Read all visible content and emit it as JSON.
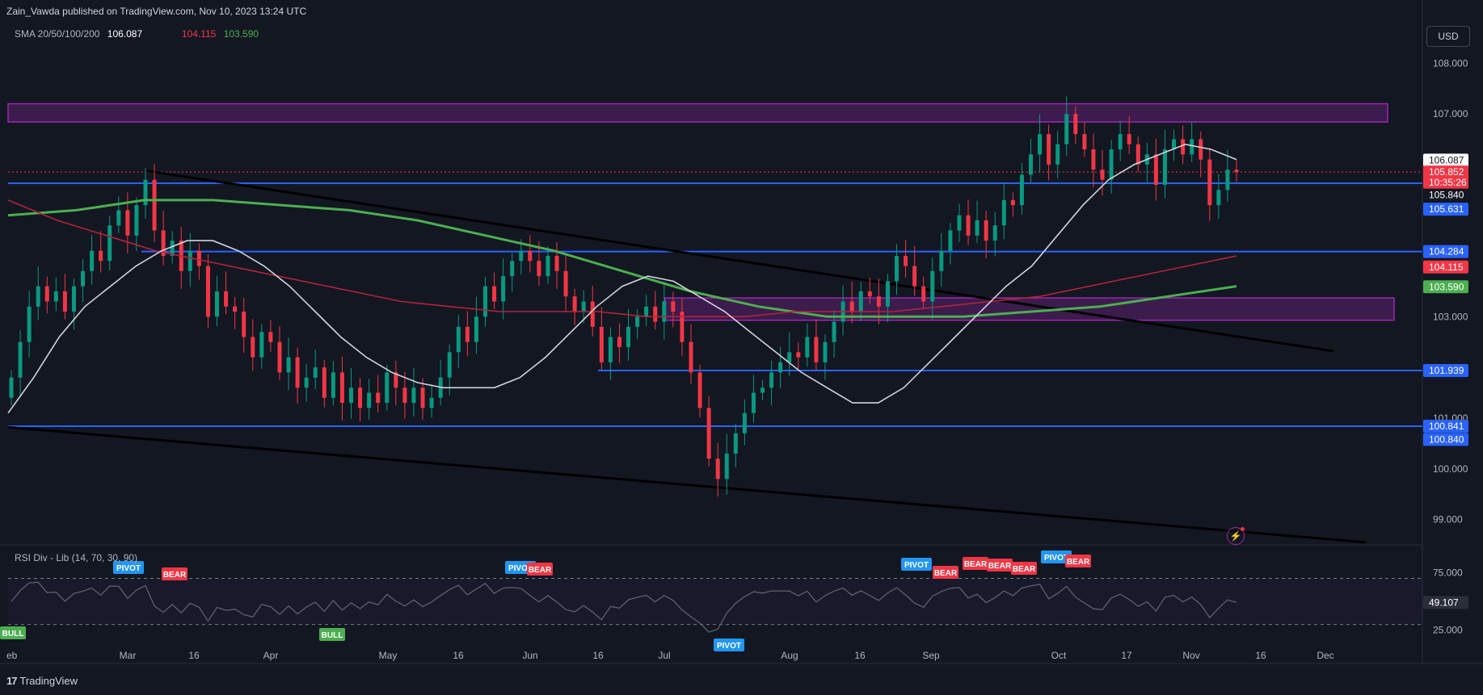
{
  "header": {
    "publish_line": "Zain_Vawda published on TradingView.com, Nov 10, 2023 13:24 UTC",
    "currency_button": "USD"
  },
  "sma_legend": {
    "label": "SMA 20/50/100/200",
    "v20": "106.087",
    "v100": "104.115",
    "v200": "103.590",
    "color_v20": "#ffffff",
    "color_v100": "#f23645",
    "color_v200": "#4caf50"
  },
  "rsi_legend": {
    "label": "RSI Div - Lib (14, 70, 30, 90)",
    "value": "49.107"
  },
  "footer": {
    "brand": "TradingView"
  },
  "chart_data": {
    "type": "candlestick",
    "instrument_note": "DXY daily",
    "price_axis": {
      "range": [
        98.5,
        108.8
      ],
      "ticks": [
        "108.000",
        "107.000",
        "103.000",
        "101.000",
        "100.000",
        "99.000"
      ]
    },
    "time_axis": {
      "labels": [
        "eb",
        "Mar",
        "16",
        "Apr",
        "May",
        "16",
        "Jun",
        "16",
        "Jul",
        "Aug",
        "16",
        "Sep",
        "Oct",
        "17",
        "Nov",
        "16",
        "Dec"
      ]
    },
    "price_labels": [
      {
        "text": "106.087",
        "color": "#ffffff",
        "price": 106.087
      },
      {
        "text": "105.852",
        "color": "#f23645",
        "price": 105.852
      },
      {
        "text": "10:35:26",
        "color": "#f23645",
        "price": 105.65
      },
      {
        "text": "105.840",
        "color": "#131722",
        "price": 105.4
      },
      {
        "text": "105.631",
        "color": "#2962ff",
        "price": 105.12
      },
      {
        "text": "104.284",
        "color": "#2962ff",
        "price": 104.284
      },
      {
        "text": "104.115",
        "color": "#f23645",
        "price": 103.98
      },
      {
        "text": "103.590",
        "color": "#4caf50",
        "price": 103.59
      },
      {
        "text": "101.939",
        "color": "#2962ff",
        "price": 101.939
      },
      {
        "text": "100.841",
        "color": "#2962ff",
        "price": 100.841
      },
      {
        "text": "100.840",
        "color": "#2962ff",
        "price": 100.58
      }
    ],
    "horizontal_levels": [
      105.631,
      104.284,
      101.939,
      100.841
    ],
    "zones": [
      {
        "from": 106.84,
        "to": 107.2,
        "color": "#9c27b0"
      },
      {
        "from": 102.93,
        "to": 103.37,
        "color": "#9c27b0"
      }
    ],
    "closes": [
      101.8,
      102.5,
      103.2,
      103.6,
      103.3,
      103.5,
      103.1,
      103.6,
      103.9,
      104.3,
      104.1,
      104.8,
      105.1,
      104.6,
      105.2,
      105.7,
      104.7,
      104.2,
      104.5,
      103.9,
      104.3,
      104.0,
      103.0,
      103.5,
      103.2,
      103.1,
      102.6,
      102.2,
      102.7,
      102.5,
      101.9,
      102.2,
      101.6,
      101.8,
      102.0,
      101.4,
      101.9,
      101.3,
      101.6,
      101.2,
      101.5,
      101.3,
      101.9,
      101.6,
      101.3,
      101.6,
      101.2,
      101.4,
      101.8,
      102.3,
      102.8,
      102.5,
      103.0,
      103.6,
      103.3,
      103.8,
      104.1,
      104.3,
      104.1,
      103.8,
      104.2,
      103.9,
      103.4,
      103.1,
      103.3,
      102.8,
      102.1,
      102.6,
      102.4,
      102.8,
      103.0,
      103.2,
      102.9,
      103.3,
      103.1,
      102.5,
      101.9,
      101.2,
      100.2,
      99.8,
      100.3,
      100.7,
      101.1,
      101.5,
      101.6,
      101.9,
      102.1,
      102.3,
      102.2,
      102.6,
      102.1,
      102.5,
      102.9,
      103.3,
      103.1,
      103.5,
      103.4,
      103.2,
      103.7,
      104.2,
      104.0,
      103.6,
      103.3,
      103.9,
      104.3,
      104.7,
      105.0,
      104.6,
      104.9,
      104.5,
      104.8,
      105.3,
      105.2,
      105.8,
      106.2,
      106.6,
      106.0,
      106.4,
      107.0,
      106.6,
      106.3,
      105.9,
      105.7,
      106.3,
      106.6,
      106.4,
      106.0,
      106.2,
      105.6,
      106.3,
      106.5,
      106.2,
      106.5,
      106.1,
      105.2,
      105.5,
      105.9,
      105.852
    ],
    "sma20": [
      101.1,
      101.8,
      102.6,
      103.2,
      103.6,
      104.0,
      104.3,
      104.5,
      104.5,
      104.3,
      104.0,
      103.6,
      103.1,
      102.6,
      102.2,
      101.9,
      101.7,
      101.6,
      101.6,
      101.6,
      101.8,
      102.2,
      102.7,
      103.2,
      103.6,
      103.8,
      103.7,
      103.4,
      103.1,
      102.7,
      102.3,
      101.9,
      101.6,
      101.3,
      101.3,
      101.6,
      102.1,
      102.6,
      103.1,
      103.6,
      104.0,
      104.6,
      105.2,
      105.7,
      106.0,
      106.2,
      106.4,
      106.3,
      106.1
    ],
    "sma100": [
      105.3,
      104.9,
      104.6,
      104.3,
      104.1,
      103.9,
      103.7,
      103.5,
      103.3,
      103.2,
      103.1,
      103.1,
      103.1,
      103.0,
      103.0,
      103.0,
      103.1,
      103.1,
      103.1,
      103.2,
      103.3,
      103.4,
      103.6,
      103.8,
      104.0,
      104.2
    ],
    "sma200": [
      105.0,
      105.1,
      105.3,
      105.3,
      105.2,
      105.1,
      104.9,
      104.6,
      104.3,
      103.9,
      103.5,
      103.2,
      103.0,
      103.0,
      103.0,
      103.1,
      103.2,
      103.4,
      103.6
    ],
    "trendlines": [
      {
        "from": [
          "Mar",
          105.9
        ],
        "to": [
          "Nov 26",
          102.3
        ]
      },
      {
        "from": [
          "Feb",
          100.8
        ],
        "to": [
          "Dec",
          98.5
        ]
      }
    ],
    "rsi": {
      "range": [
        15,
        90
      ],
      "ticks": [
        "75.000",
        "25.000"
      ],
      "levels": [
        70,
        30
      ],
      "value": 49.107,
      "signals": [
        {
          "label": "BULL",
          "color": "#4caf50"
        },
        {
          "label": "PIVOT",
          "color": "#2196f3"
        },
        {
          "label": "BEAR",
          "color": "#f23645"
        },
        {
          "label": "BULL",
          "color": "#4caf50"
        },
        {
          "label": "PIVOT",
          "color": "#2196f3"
        },
        {
          "label": "BEAR",
          "color": "#f23645"
        },
        {
          "label": "PIVOT",
          "color": "#2196f3"
        },
        {
          "label": "PIVOT",
          "color": "#2196f3"
        },
        {
          "label": "BEAR",
          "color": "#f23645"
        },
        {
          "label": "BEAR",
          "color": "#f23645"
        },
        {
          "label": "BEAR",
          "color": "#f23645"
        },
        {
          "label": "BEAR",
          "color": "#f23645"
        },
        {
          "label": "PIVOT",
          "color": "#2196f3"
        },
        {
          "label": "BEAR",
          "color": "#f23645"
        }
      ]
    }
  }
}
